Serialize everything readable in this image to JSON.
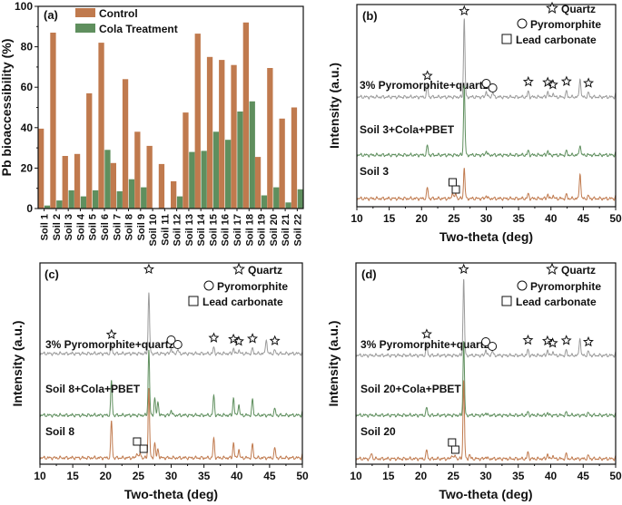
{
  "chart_data": [
    {
      "panel": "(a)",
      "type": "bar",
      "ylabel": "Pb bioaccessibility (%)",
      "ylim": [
        0,
        100
      ],
      "yticks": [
        0,
        20,
        40,
        60,
        80,
        100
      ],
      "legend_position": "top-left",
      "categories": [
        "Soil 1",
        "Soil 2",
        "Soil 3",
        "Soil 4",
        "Soil 5",
        "Soil 6",
        "Soil 7",
        "Soil 8",
        "Soil 9",
        "Soil 10",
        "Soil 11",
        "Soil 12",
        "Soil 13",
        "Soil 14",
        "Soil 15",
        "Soil 16",
        "Soil 17",
        "Soil 18",
        "Soil 19",
        "Soil 20",
        "Soil 21",
        "Soil 22"
      ],
      "series": [
        {
          "name": "Control",
          "color": "#C07A4E",
          "values": [
            39.5,
            87,
            26,
            27,
            57,
            82,
            22.5,
            64,
            38,
            31,
            22,
            13.5,
            47.5,
            86.5,
            75,
            73.5,
            71,
            92,
            25.5,
            69.5,
            44.5,
            50
          ]
        },
        {
          "name": "Cola Treatment",
          "color": "#5F8F5E",
          "values": [
            1.5,
            4,
            9,
            6,
            9,
            29,
            8.5,
            14.5,
            10.5,
            0,
            0,
            6,
            28,
            28.5,
            38,
            34,
            48,
            53,
            6.5,
            10.5,
            3,
            9.5
          ]
        }
      ]
    },
    {
      "panel": "(b)",
      "type": "line",
      "xlabel": "Two-theta (deg)",
      "ylabel": "Intensity (a.u.)",
      "xlim": [
        10,
        50
      ],
      "xticks": [
        10,
        15,
        20,
        25,
        30,
        35,
        40,
        45,
        50
      ],
      "legend": [
        "Quartz",
        "Pyromorphite",
        "Lead carbonate"
      ],
      "series": [
        {
          "name": "3% Pyromorphite+quartz",
          "color": "#9B9B9B"
        },
        {
          "name": "Soil 3+Cola+PBET",
          "color": "#5F8F5E"
        },
        {
          "name": "Soil 3",
          "color": "#C07A4E"
        }
      ],
      "peaks": {
        "3% Pyromorphite+quartz": [
          [
            20.9,
            0.55
          ],
          [
            26.6,
            3.6
          ],
          [
            30.0,
            0.28
          ],
          [
            31.0,
            0.22
          ],
          [
            36.5,
            0.26
          ],
          [
            39.5,
            0.26
          ],
          [
            40.3,
            0.18
          ],
          [
            42.4,
            0.25
          ],
          [
            44.5,
            0.9
          ],
          [
            45.8,
            0.2
          ],
          [
            50.1,
            0.25
          ]
        ],
        "Soil 3+Cola+PBET": [
          [
            20.9,
            0.45
          ],
          [
            26.6,
            3.2
          ],
          [
            30.0,
            0.2
          ],
          [
            36.5,
            0.2
          ],
          [
            39.5,
            0.2
          ],
          [
            42.4,
            0.18
          ],
          [
            44.5,
            0.5
          ],
          [
            50.1,
            0.2
          ]
        ],
        "Soil 3": [
          [
            20.9,
            0.5
          ],
          [
            24.8,
            0.3
          ],
          [
            25.3,
            0.22
          ],
          [
            26.6,
            1.4
          ],
          [
            30.0,
            0.15
          ],
          [
            36.5,
            0.22
          ],
          [
            39.5,
            0.2
          ],
          [
            40.3,
            0.15
          ],
          [
            42.4,
            0.18
          ],
          [
            44.5,
            1.2
          ],
          [
            45.8,
            0.12
          ],
          [
            50.1,
            0.2
          ]
        ]
      },
      "markers": {
        "quartz": [
          20.9,
          26.6,
          36.5,
          39.5,
          40.3,
          42.4,
          45.8
        ],
        "pyromorphite": [
          30.0,
          31.0
        ],
        "lead_carbonate": [
          24.8,
          25.3
        ]
      }
    },
    {
      "panel": "(c)",
      "type": "line",
      "xlabel": "Two-theta (deg)",
      "ylabel": "Intensity (a.u.)",
      "xlim": [
        10,
        50
      ],
      "xticks": [
        10,
        15,
        20,
        25,
        30,
        35,
        40,
        45,
        50
      ],
      "legend": [
        "Quartz",
        "Pyromorphite",
        "Lead carbonate"
      ],
      "series": [
        {
          "name": "3% Pyromorphite+quartz",
          "color": "#9B9B9B"
        },
        {
          "name": "Soil 8+Cola+PBET",
          "color": "#5F8F5E"
        },
        {
          "name": "Soil 8",
          "color": "#C07A4E"
        }
      ],
      "peaks": {
        "3% Pyromorphite+quartz": [
          [
            20.9,
            0.45
          ],
          [
            26.6,
            2.8
          ],
          [
            30.0,
            0.25
          ],
          [
            31.0,
            0.2
          ],
          [
            36.5,
            0.28
          ],
          [
            39.5,
            0.25
          ],
          [
            40.3,
            0.18
          ],
          [
            42.4,
            0.22
          ],
          [
            44.5,
            0.7
          ],
          [
            45.8,
            0.15
          ]
        ],
        "Soil 8+Cola+PBET": [
          [
            20.9,
            1.6
          ],
          [
            26.6,
            3.0
          ],
          [
            27.5,
            0.8
          ],
          [
            28.0,
            0.6
          ],
          [
            30.0,
            0.25
          ],
          [
            36.5,
            0.9
          ],
          [
            39.5,
            0.8
          ],
          [
            40.3,
            0.5
          ],
          [
            42.4,
            0.7
          ],
          [
            45.8,
            0.3
          ],
          [
            50.1,
            0.25
          ]
        ],
        "Soil 8": [
          [
            20.9,
            1.7
          ],
          [
            24.8,
            0.25
          ],
          [
            25.3,
            0.2
          ],
          [
            26.6,
            3.2
          ],
          [
            27.5,
            0.7
          ],
          [
            28.0,
            0.4
          ],
          [
            36.5,
            0.9
          ],
          [
            39.5,
            0.7
          ],
          [
            40.3,
            0.4
          ],
          [
            42.4,
            0.6
          ],
          [
            45.8,
            0.45
          ],
          [
            50.1,
            0.25
          ]
        ]
      },
      "markers": {
        "quartz": [
          20.9,
          26.6,
          36.5,
          39.5,
          40.3,
          42.4,
          45.8
        ],
        "pyromorphite": [
          30.0,
          31.0
        ],
        "lead_carbonate": [
          24.8,
          25.8
        ]
      }
    },
    {
      "panel": "(d)",
      "type": "line",
      "xlabel": "Two-theta (deg)",
      "ylabel": "Intensity (a.u.)",
      "xlim": [
        10,
        50
      ],
      "xticks": [
        10,
        15,
        20,
        25,
        30,
        35,
        40,
        45,
        50
      ],
      "legend": [
        "Quartz",
        "Pyromorphite",
        "Lead carbonate"
      ],
      "series": [
        {
          "name": "3% Pyromorphite+quartz",
          "color": "#9B9B9B"
        },
        {
          "name": "Soil 20+Cola+PBET",
          "color": "#5F8F5E"
        },
        {
          "name": "Soil 20",
          "color": "#C07A4E"
        }
      ],
      "peaks": {
        "3% Pyromorphite+quartz": [
          [
            20.9,
            0.55
          ],
          [
            26.6,
            3.5
          ],
          [
            30.0,
            0.28
          ],
          [
            31.0,
            0.22
          ],
          [
            36.5,
            0.26
          ],
          [
            39.5,
            0.25
          ],
          [
            40.3,
            0.18
          ],
          [
            42.4,
            0.22
          ],
          [
            44.5,
            0.85
          ],
          [
            45.8,
            0.18
          ],
          [
            50.1,
            0.22
          ]
        ],
        "Soil 20+Cola+PBET": [
          [
            20.9,
            0.35
          ],
          [
            26.6,
            3.4
          ],
          [
            30.0,
            0.12
          ],
          [
            36.5,
            0.15
          ],
          [
            39.5,
            0.12
          ],
          [
            42.4,
            0.12
          ],
          [
            45.8,
            0.1
          ],
          [
            50.1,
            0.12
          ]
        ],
        "Soil 20": [
          [
            12.4,
            0.25
          ],
          [
            20.9,
            0.4
          ],
          [
            24.8,
            0.2
          ],
          [
            25.3,
            0.15
          ],
          [
            26.6,
            3.6
          ],
          [
            27.5,
            0.2
          ],
          [
            30.0,
            0.1
          ],
          [
            36.5,
            0.3
          ],
          [
            39.5,
            0.22
          ],
          [
            40.3,
            0.15
          ],
          [
            42.4,
            0.22
          ],
          [
            45.8,
            0.15
          ],
          [
            50.1,
            0.18
          ]
        ]
      },
      "markers": {
        "quartz": [
          20.9,
          26.6,
          36.5,
          39.5,
          40.3,
          42.4,
          45.8
        ],
        "pyromorphite": [
          30.0,
          31.0
        ],
        "lead_carbonate": [
          24.8,
          25.3
        ]
      }
    }
  ]
}
